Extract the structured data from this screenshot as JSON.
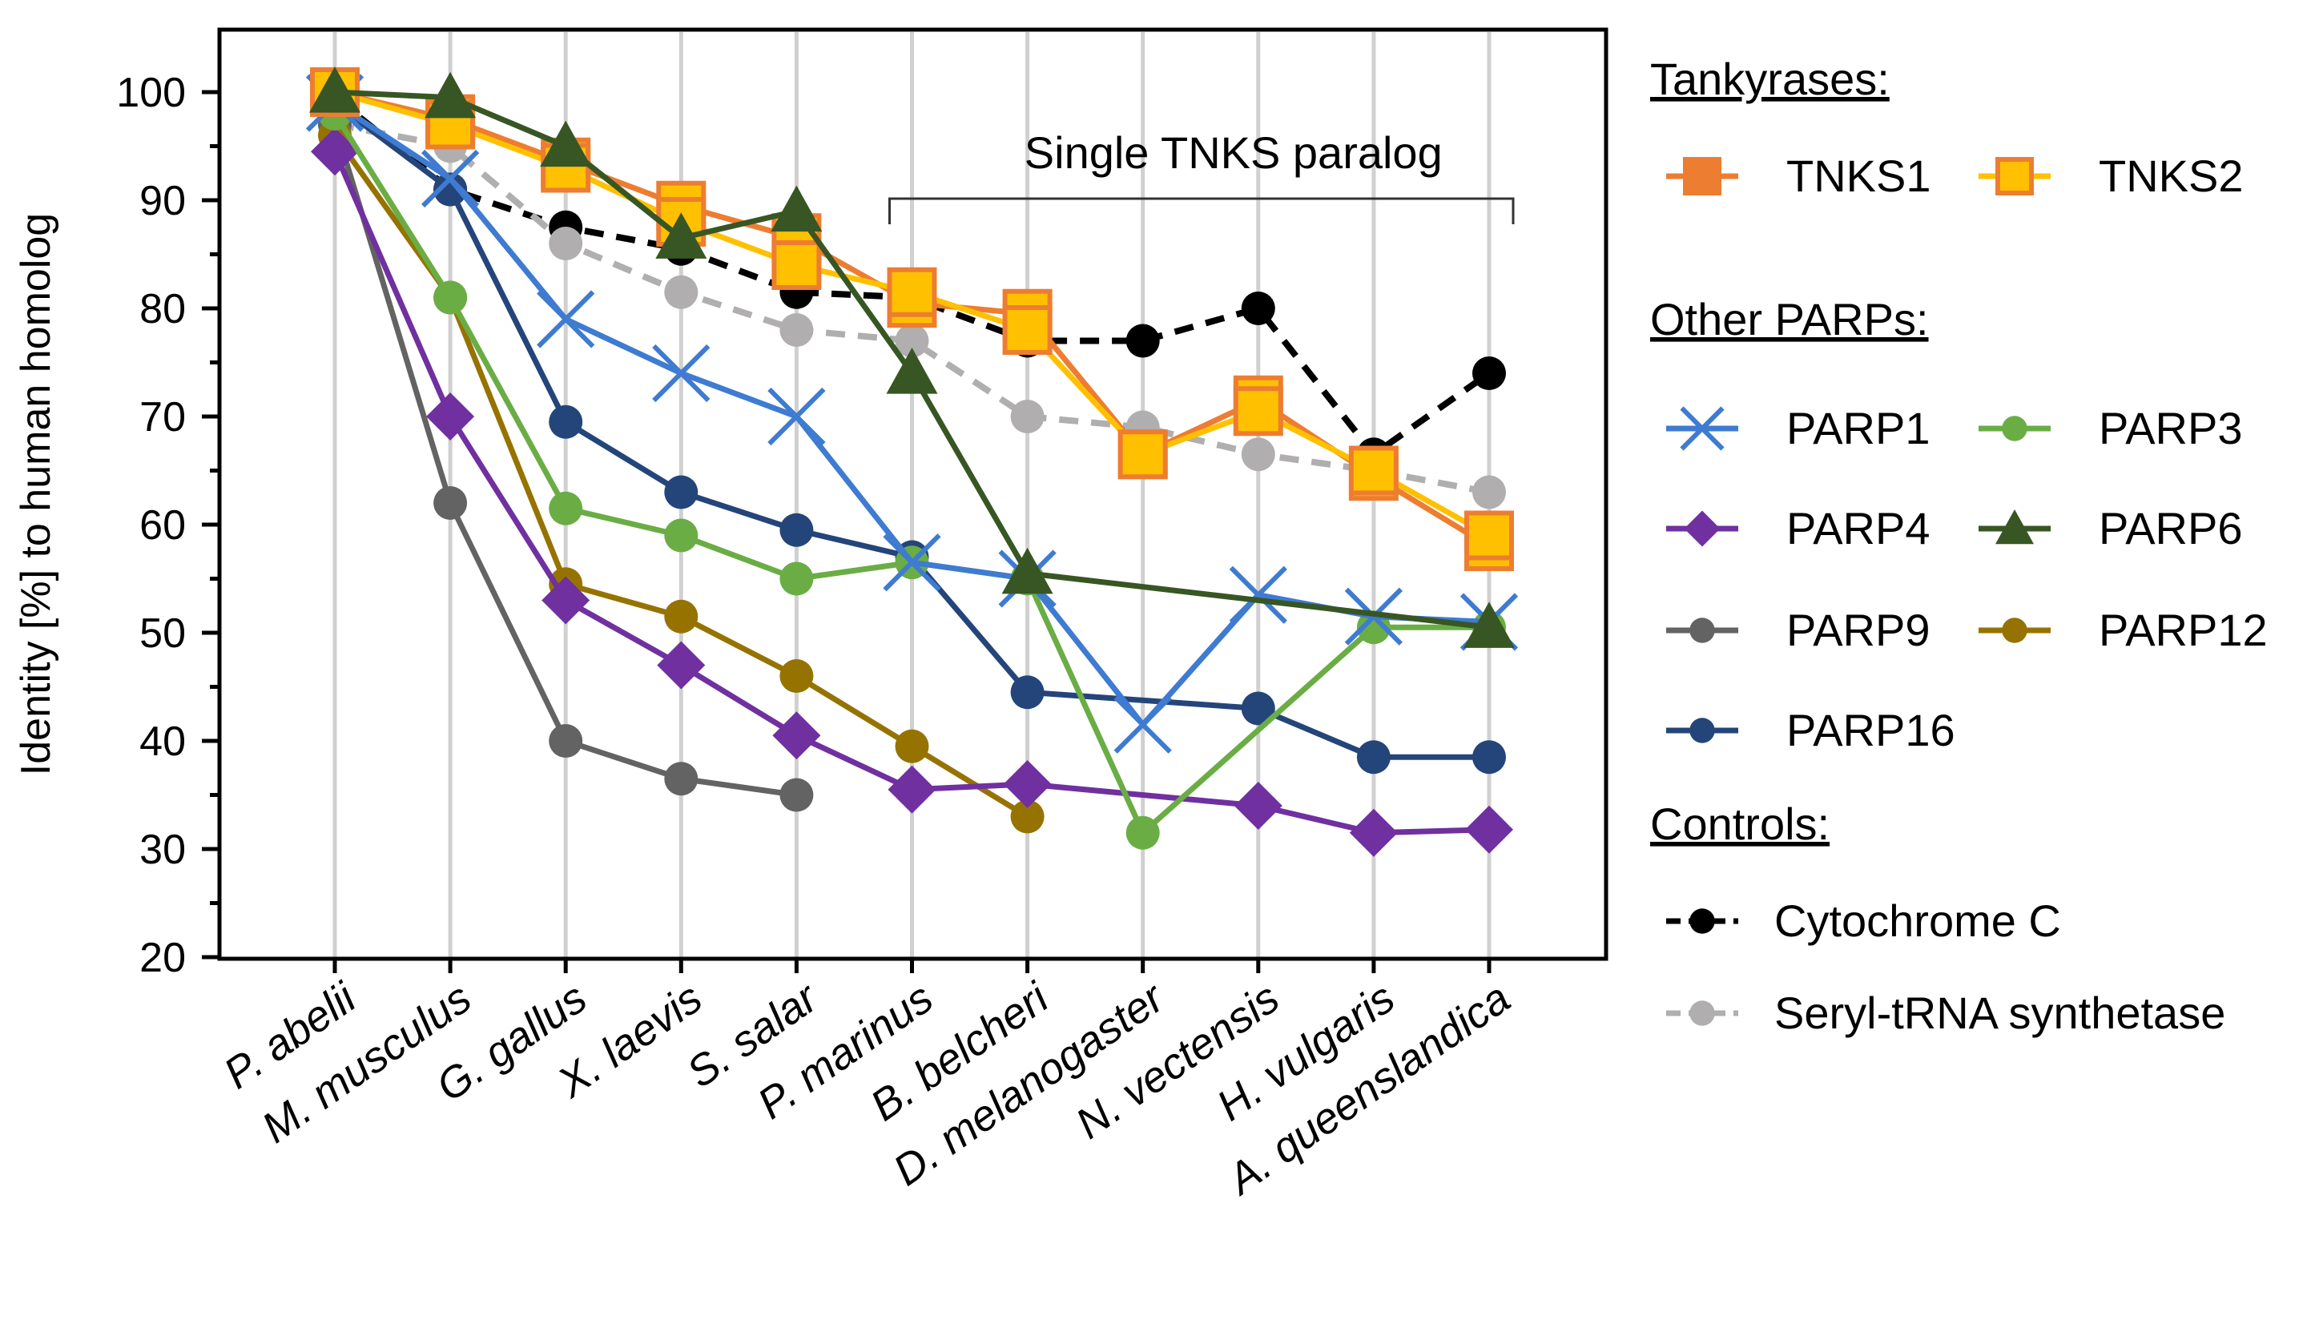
{
  "chart_data": {
    "type": "line",
    "title": "",
    "xlabel": "",
    "ylabel": "Identity [%] to human homolog",
    "ylim": [
      20,
      100
    ],
    "yticks": [
      20,
      30,
      40,
      50,
      60,
      70,
      80,
      90,
      100
    ],
    "grid": "vertical",
    "legend_placement": "right",
    "categories": [
      "P. abelii",
      "M. musculus",
      "G. gallus",
      "X. laevis",
      "S. salar",
      "P. marinus",
      "B. belcheri",
      "D. melanogaster",
      "N. vectensis",
      "H. vulgaris",
      "A. queenslandica"
    ],
    "annotation": {
      "text": "Single TNKS paralog",
      "from": "P. marinus",
      "to": "A. queenslandica"
    },
    "legend_groups": [
      {
        "title": "Tankyrases:",
        "items": [
          "TNKS1",
          "TNKS2"
        ]
      },
      {
        "title": "Other PARPs:",
        "items": [
          "PARP1",
          "PARP3",
          "PARP4",
          "PARP6",
          "PARP9",
          "PARP12",
          "PARP16"
        ]
      },
      {
        "title": "Controls:",
        "items": [
          "Cytochrome C",
          "Seryl-tRNA synthetase"
        ]
      }
    ],
    "series": [
      {
        "name": "Cytochrome C",
        "color": "#000000",
        "marker": "circle",
        "dashed": true,
        "values": [
          99.5,
          91,
          87.5,
          85.5,
          81.5,
          81,
          77,
          77,
          80,
          66.5,
          74
        ]
      },
      {
        "name": "Seryl-tRNA synthetase",
        "color": "#b0aeae",
        "marker": "circle",
        "dashed": true,
        "values": [
          97,
          95,
          86,
          81.5,
          78,
          77,
          70,
          69,
          66.5,
          65,
          63
        ]
      },
      {
        "name": "PARP9",
        "color": "#636363",
        "marker": "circle",
        "values": [
          97,
          62,
          40,
          36.5,
          35,
          null,
          null,
          null,
          null,
          null,
          null
        ]
      },
      {
        "name": "PARP12",
        "color": "#967300",
        "marker": "circle",
        "values": [
          96,
          81,
          54.5,
          51.5,
          46,
          39.5,
          33,
          null,
          null,
          null,
          null
        ]
      },
      {
        "name": "PARP4",
        "color": "#7030a0",
        "marker": "diamond",
        "values": [
          94.5,
          70,
          53,
          47,
          40.5,
          35.5,
          36,
          null,
          34,
          31.5,
          31.8
        ]
      },
      {
        "name": "PARP16",
        "color": "#24457a",
        "marker": "circle",
        "values": [
          99,
          91,
          69.5,
          63,
          59.5,
          57,
          44.5,
          null,
          43,
          38.5,
          38.5
        ]
      },
      {
        "name": "PARP3",
        "color": "#6aad45",
        "marker": "circle",
        "values": [
          98,
          81,
          61.5,
          59,
          55,
          56.5,
          55,
          31.5,
          null,
          50.5,
          50.5
        ]
      },
      {
        "name": "PARP1",
        "color": "#3e7bd1",
        "marker": "x",
        "values": [
          99,
          92,
          79,
          74,
          70,
          56.5,
          55,
          41.5,
          53.5,
          51.5,
          51
        ]
      },
      {
        "name": "TNKS1",
        "color": "#ed7d31",
        "marker": "square",
        "values": [
          100,
          97.5,
          93.5,
          89.5,
          86.5,
          80.5,
          79.5,
          66.5,
          71.5,
          64.5,
          58
        ]
      },
      {
        "name": "TNKS2",
        "color": "#ffc000",
        "marker": "square",
        "values": [
          100,
          97,
          93,
          88,
          84,
          81.5,
          78,
          66.5,
          70.5,
          65,
          59
        ]
      },
      {
        "name": "PARP6",
        "color": "#375623",
        "marker": "triangle",
        "values": [
          100,
          99.5,
          95,
          86.5,
          89,
          74,
          55.5,
          null,
          null,
          null,
          50.5
        ]
      }
    ]
  }
}
